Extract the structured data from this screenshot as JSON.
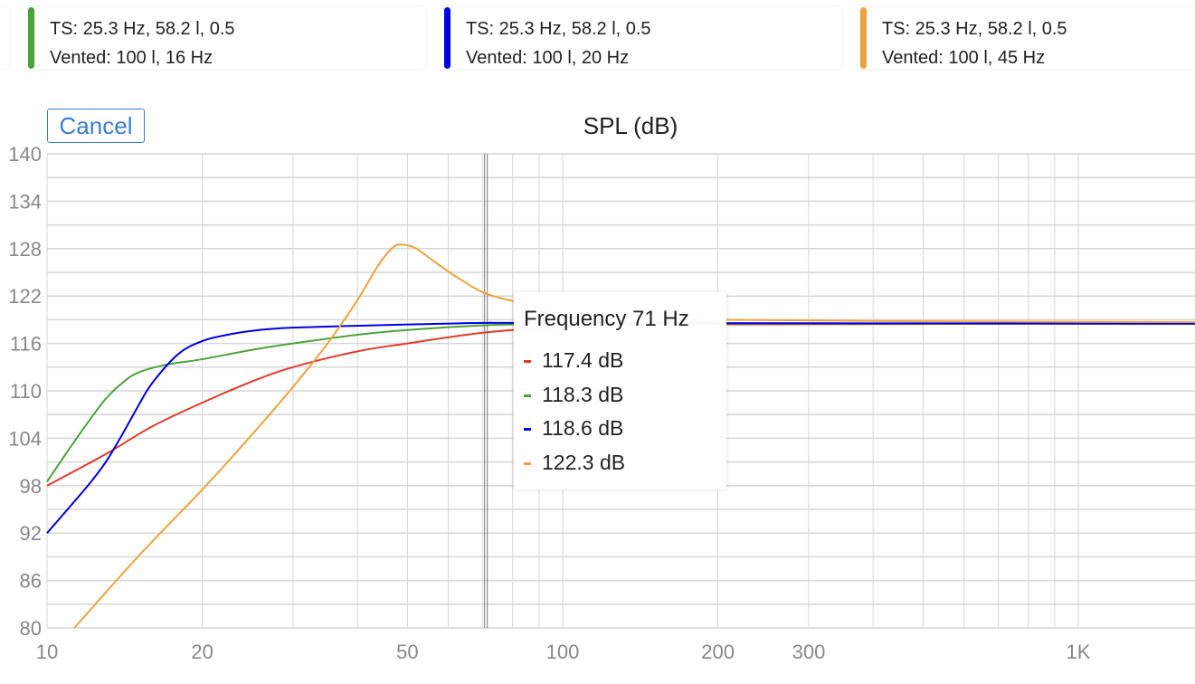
{
  "legend": [
    {
      "line1": "TS: 25.3 Hz, 58.2 l, 0.5",
      "line2": "Vented: 100 l, 16 Hz",
      "color": "#4aa23a"
    },
    {
      "line1": "TS: 25.3 Hz, 58.2 l, 0.5",
      "line2": "Vented: 100 l, 20 Hz",
      "color": "#0000e6"
    },
    {
      "line1": "TS: 25.3 Hz, 58.2 l, 0.5",
      "line2": "Vented: 100 l, 45 Hz",
      "color": "#eea23e"
    }
  ],
  "cancel_label": "Cancel",
  "tooltip": {
    "header": "Frequency 71 Hz",
    "rows": [
      {
        "text": "117.4 dB",
        "color": "#e03a2a"
      },
      {
        "text": "118.3 dB",
        "color": "#4aa23a"
      },
      {
        "text": "118.6 dB",
        "color": "#0000e6"
      },
      {
        "text": "122.3 dB",
        "color": "#eea23e"
      }
    ]
  },
  "chart_data": {
    "type": "line",
    "title": "SPL (dB)",
    "xscale": "log",
    "xlim": [
      10,
      1684
    ],
    "ylim": [
      80,
      140
    ],
    "yticks": [
      80,
      86,
      92,
      98,
      104,
      110,
      116,
      122,
      128,
      134,
      140
    ],
    "xticks": [
      {
        "v": 10,
        "label": "10"
      },
      {
        "v": 20,
        "label": "20"
      },
      {
        "v": 50,
        "label": "50"
      },
      {
        "v": 100,
        "label": "100"
      },
      {
        "v": 200,
        "label": "200"
      },
      {
        "v": 300,
        "label": "300"
      },
      {
        "v": 1000,
        "label": "1K"
      }
    ],
    "cursor_x": 71,
    "series": [
      {
        "name": "red",
        "color": "#e03a2a",
        "x": [
          10,
          13,
          16,
          20,
          25,
          30,
          40,
          50,
          71,
          100,
          200,
          1684
        ],
        "y": [
          98,
          102,
          105.5,
          108.5,
          111.2,
          113,
          115,
          116,
          117.4,
          118,
          118.4,
          118.5
        ]
      },
      {
        "name": "green",
        "color": "#4aa23a",
        "x": [
          10,
          11,
          12,
          13,
          14,
          15,
          17,
          20,
          25,
          30,
          40,
          50,
          71,
          100,
          200,
          1684
        ],
        "y": [
          98.5,
          102.5,
          106,
          109,
          111,
          112.3,
          113.3,
          114,
          115.2,
          116,
          117.1,
          117.7,
          118.3,
          118.5,
          118.5,
          118.5
        ]
      },
      {
        "name": "blue",
        "color": "#0000e6",
        "x": [
          10,
          12,
          13,
          14,
          15,
          16,
          18,
          20,
          22,
          25,
          30,
          50,
          71,
          100,
          1684
        ],
        "y": [
          92,
          98,
          101,
          104.5,
          108,
          111,
          114.7,
          116.3,
          117,
          117.6,
          118,
          118.4,
          118.6,
          118.6,
          118.5
        ]
      },
      {
        "name": "orange",
        "color": "#eea23e",
        "x": [
          11.3,
          15,
          20,
          25,
          30,
          35,
          40,
          44,
          47,
          49,
          52,
          56,
          62,
          71,
          85,
          100,
          150,
          200,
          500,
          1684
        ],
        "y": [
          80,
          89,
          97.5,
          104.5,
          110.5,
          116,
          121.5,
          126,
          128.2,
          128.5,
          128,
          126.5,
          124.5,
          122.3,
          121,
          120,
          119.3,
          119,
          118.8,
          118.7
        ]
      }
    ]
  }
}
